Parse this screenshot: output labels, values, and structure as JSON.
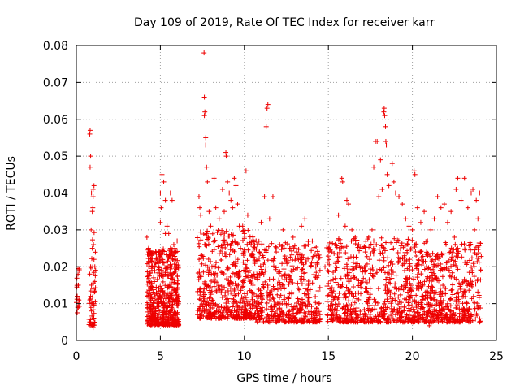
{
  "chart_data": {
    "type": "scatter",
    "title": "Day 109 of 2019, Rate Of TEC Index for receiver karr",
    "xlabel": "GPS time / hours",
    "ylabel": "ROTI / TECUs",
    "xlim": [
      0,
      25
    ],
    "ylim": [
      0,
      0.08
    ],
    "x_ticks": [
      0,
      5,
      10,
      15,
      20,
      25
    ],
    "x_tick_labels": [
      "0",
      "5",
      "10",
      "15",
      "20",
      "25"
    ],
    "y_ticks": [
      0,
      0.01,
      0.02,
      0.03,
      0.04,
      0.05,
      0.06,
      0.07,
      0.08
    ],
    "y_tick_labels": [
      "0",
      "0.01",
      "0.02",
      "0.03",
      "0.04",
      "0.05",
      "0.06",
      "0.07",
      "0.08"
    ],
    "grid": true,
    "marker": "+",
    "color": "#ee0000",
    "series": [
      {
        "name": "ROTI",
        "points": [
          [
            0.05,
            0.012
          ],
          [
            0.08,
            0.009
          ],
          [
            0.1,
            0.018
          ],
          [
            0.12,
            0.015
          ],
          [
            0.15,
            0.011
          ],
          [
            0.05,
            0.0075
          ],
          [
            0.1,
            0.0195
          ],
          [
            0.8,
            0.056
          ],
          [
            0.82,
            0.057
          ],
          [
            0.85,
            0.05
          ],
          [
            0.82,
            0.047
          ],
          [
            0.9,
            0.04
          ],
          [
            0.95,
            0.035
          ],
          [
            1.0,
            0.041
          ],
          [
            1.05,
            0.042
          ],
          [
            1.0,
            0.039
          ],
          [
            0.98,
            0.036
          ],
          [
            1.02,
            0.026
          ],
          [
            0.95,
            0.025
          ],
          [
            0.85,
            0.02
          ],
          [
            0.8,
            0.018
          ],
          [
            0.9,
            0.015
          ],
          [
            0.85,
            0.012
          ],
          [
            0.95,
            0.01
          ],
          [
            1.0,
            0.013
          ],
          [
            0.9,
            0.008
          ],
          [
            0.85,
            0.005
          ],
          [
            0.95,
            0.004
          ],
          [
            1.0,
            0.0035
          ],
          [
            1.05,
            0.022
          ],
          [
            1.1,
            0.016
          ],
          [
            0.8,
            0.011
          ],
          [
            1.1,
            0.02
          ],
          [
            0.88,
            0.03
          ],
          [
            4.2,
            0.028
          ],
          [
            4.3,
            0.025
          ],
          [
            4.35,
            0.021
          ],
          [
            4.5,
            0.019
          ],
          [
            4.6,
            0.017
          ],
          [
            4.8,
            0.022
          ],
          [
            4.9,
            0.024
          ],
          [
            5.0,
            0.04
          ],
          [
            5.05,
            0.036
          ],
          [
            5.1,
            0.045
          ],
          [
            5.2,
            0.043
          ],
          [
            5.3,
            0.038
          ],
          [
            5.4,
            0.031
          ],
          [
            5.5,
            0.029
          ],
          [
            5.6,
            0.04
          ],
          [
            5.7,
            0.038
          ],
          [
            5.8,
            0.026
          ],
          [
            5.9,
            0.022
          ],
          [
            6.0,
            0.027
          ],
          [
            4.5,
            0.006
          ],
          [
            4.7,
            0.005
          ],
          [
            5.2,
            0.004
          ],
          [
            5.5,
            0.006
          ],
          [
            6.0,
            0.007
          ],
          [
            5.8,
            0.0055
          ],
          [
            5.0,
            0.032
          ],
          [
            5.3,
            0.029
          ],
          [
            5.6,
            0.025
          ],
          [
            7.3,
            0.039
          ],
          [
            7.35,
            0.036
          ],
          [
            7.4,
            0.034
          ],
          [
            7.6,
            0.078
          ],
          [
            7.62,
            0.066
          ],
          [
            7.65,
            0.062
          ],
          [
            7.62,
            0.061
          ],
          [
            7.7,
            0.055
          ],
          [
            7.7,
            0.053
          ],
          [
            7.75,
            0.047
          ],
          [
            7.8,
            0.043
          ],
          [
            7.9,
            0.035
          ],
          [
            8.0,
            0.031
          ],
          [
            8.2,
            0.044
          ],
          [
            8.3,
            0.036
          ],
          [
            8.5,
            0.033
          ],
          [
            8.7,
            0.041
          ],
          [
            8.8,
            0.035
          ],
          [
            8.9,
            0.051
          ],
          [
            8.92,
            0.05
          ],
          [
            9.0,
            0.043
          ],
          [
            9.1,
            0.04
          ],
          [
            9.2,
            0.038
          ],
          [
            9.3,
            0.036
          ],
          [
            9.4,
            0.044
          ],
          [
            9.5,
            0.042
          ],
          [
            9.6,
            0.037
          ],
          [
            9.7,
            0.031
          ],
          [
            9.9,
            0.031
          ],
          [
            10.0,
            0.029
          ],
          [
            10.1,
            0.046
          ],
          [
            10.2,
            0.034
          ],
          [
            10.4,
            0.026
          ],
          [
            10.7,
            0.027
          ],
          [
            10.9,
            0.024
          ],
          [
            11.0,
            0.032
          ],
          [
            11.2,
            0.039
          ],
          [
            11.3,
            0.058
          ],
          [
            11.35,
            0.063
          ],
          [
            11.4,
            0.064
          ],
          [
            11.5,
            0.033
          ],
          [
            11.7,
            0.039
          ],
          [
            11.9,
            0.024
          ],
          [
            12.1,
            0.026
          ],
          [
            12.3,
            0.03
          ],
          [
            12.5,
            0.022
          ],
          [
            12.7,
            0.025
          ],
          [
            12.9,
            0.028
          ],
          [
            13.1,
            0.024
          ],
          [
            13.4,
            0.031
          ],
          [
            13.6,
            0.033
          ],
          [
            13.8,
            0.026
          ],
          [
            14.0,
            0.021
          ],
          [
            14.3,
            0.023
          ],
          [
            14.5,
            0.019
          ],
          [
            14.8,
            0.02
          ],
          [
            7.5,
            0.008
          ],
          [
            8.0,
            0.007
          ],
          [
            8.5,
            0.009
          ],
          [
            9.0,
            0.006
          ],
          [
            9.5,
            0.008
          ],
          [
            10.0,
            0.007
          ],
          [
            10.5,
            0.006
          ],
          [
            11.0,
            0.008
          ],
          [
            11.5,
            0.005
          ],
          [
            12.0,
            0.006
          ],
          [
            12.5,
            0.007
          ],
          [
            13.0,
            0.006
          ],
          [
            13.5,
            0.005
          ],
          [
            14.0,
            0.007
          ],
          [
            14.5,
            0.006
          ],
          [
            15.0,
            0.025
          ],
          [
            15.2,
            0.024
          ],
          [
            15.4,
            0.019
          ],
          [
            15.6,
            0.034
          ],
          [
            15.8,
            0.044
          ],
          [
            15.85,
            0.043
          ],
          [
            16.0,
            0.031
          ],
          [
            16.1,
            0.038
          ],
          [
            16.2,
            0.037
          ],
          [
            16.4,
            0.03
          ],
          [
            16.6,
            0.028
          ],
          [
            16.8,
            0.026
          ],
          [
            17.0,
            0.025
          ],
          [
            17.2,
            0.024
          ],
          [
            17.4,
            0.028
          ],
          [
            17.6,
            0.03
          ],
          [
            17.7,
            0.047
          ],
          [
            17.8,
            0.054
          ],
          [
            17.9,
            0.054
          ],
          [
            18.0,
            0.039
          ],
          [
            18.1,
            0.049
          ],
          [
            18.2,
            0.041
          ],
          [
            18.3,
            0.062
          ],
          [
            18.32,
            0.063
          ],
          [
            18.35,
            0.061
          ],
          [
            18.4,
            0.058
          ],
          [
            18.42,
            0.054
          ],
          [
            18.45,
            0.053
          ],
          [
            18.5,
            0.045
          ],
          [
            18.6,
            0.042
          ],
          [
            18.8,
            0.048
          ],
          [
            18.9,
            0.043
          ],
          [
            19.0,
            0.04
          ],
          [
            19.2,
            0.039
          ],
          [
            19.4,
            0.037
          ],
          [
            19.6,
            0.033
          ],
          [
            19.8,
            0.031
          ],
          [
            20.0,
            0.03
          ],
          [
            20.1,
            0.046
          ],
          [
            20.15,
            0.045
          ],
          [
            20.3,
            0.036
          ],
          [
            20.5,
            0.032
          ],
          [
            20.7,
            0.035
          ],
          [
            20.9,
            0.027
          ],
          [
            21.1,
            0.03
          ],
          [
            21.3,
            0.033
          ],
          [
            21.5,
            0.039
          ],
          [
            21.7,
            0.036
          ],
          [
            21.9,
            0.037
          ],
          [
            22.1,
            0.032
          ],
          [
            22.3,
            0.035
          ],
          [
            22.5,
            0.028
          ],
          [
            22.6,
            0.041
          ],
          [
            22.7,
            0.044
          ],
          [
            22.9,
            0.038
          ],
          [
            23.1,
            0.044
          ],
          [
            23.3,
            0.036
          ],
          [
            23.5,
            0.04
          ],
          [
            23.6,
            0.041
          ],
          [
            23.8,
            0.038
          ],
          [
            24.0,
            0.04
          ],
          [
            23.9,
            0.033
          ],
          [
            23.7,
            0.03
          ],
          [
            15.5,
            0.007
          ],
          [
            16.0,
            0.006
          ],
          [
            16.5,
            0.005
          ],
          [
            17.0,
            0.007
          ],
          [
            17.5,
            0.006
          ],
          [
            18.0,
            0.005
          ],
          [
            18.5,
            0.006
          ],
          [
            19.0,
            0.007
          ],
          [
            19.5,
            0.005
          ],
          [
            20.0,
            0.006
          ],
          [
            20.5,
            0.006
          ],
          [
            21.0,
            0.004
          ],
          [
            21.5,
            0.006
          ],
          [
            22.0,
            0.007
          ],
          [
            22.5,
            0.005
          ],
          [
            23.0,
            0.006
          ],
          [
            23.5,
            0.007
          ],
          [
            24.0,
            0.005
          ]
        ]
      }
    ],
    "dense_bands": [
      {
        "x_start": 0.0,
        "x_end": 0.2,
        "y_low": 0.008,
        "y_high": 0.02,
        "count": 12
      },
      {
        "x_start": 0.75,
        "x_end": 1.15,
        "y_low": 0.004,
        "y_high": 0.03,
        "count": 40
      },
      {
        "x_start": 4.2,
        "x_end": 6.1,
        "y_low": 0.004,
        "y_high": 0.025,
        "count": 520
      },
      {
        "x_start": 7.2,
        "x_end": 10.6,
        "y_low": 0.006,
        "y_high": 0.03,
        "count": 480
      },
      {
        "x_start": 10.6,
        "x_end": 14.5,
        "y_low": 0.005,
        "y_high": 0.027,
        "count": 460
      },
      {
        "x_start": 14.9,
        "x_end": 20.0,
        "y_low": 0.005,
        "y_high": 0.028,
        "count": 600
      },
      {
        "x_start": 20.0,
        "x_end": 24.1,
        "y_low": 0.005,
        "y_high": 0.027,
        "count": 520
      }
    ]
  }
}
